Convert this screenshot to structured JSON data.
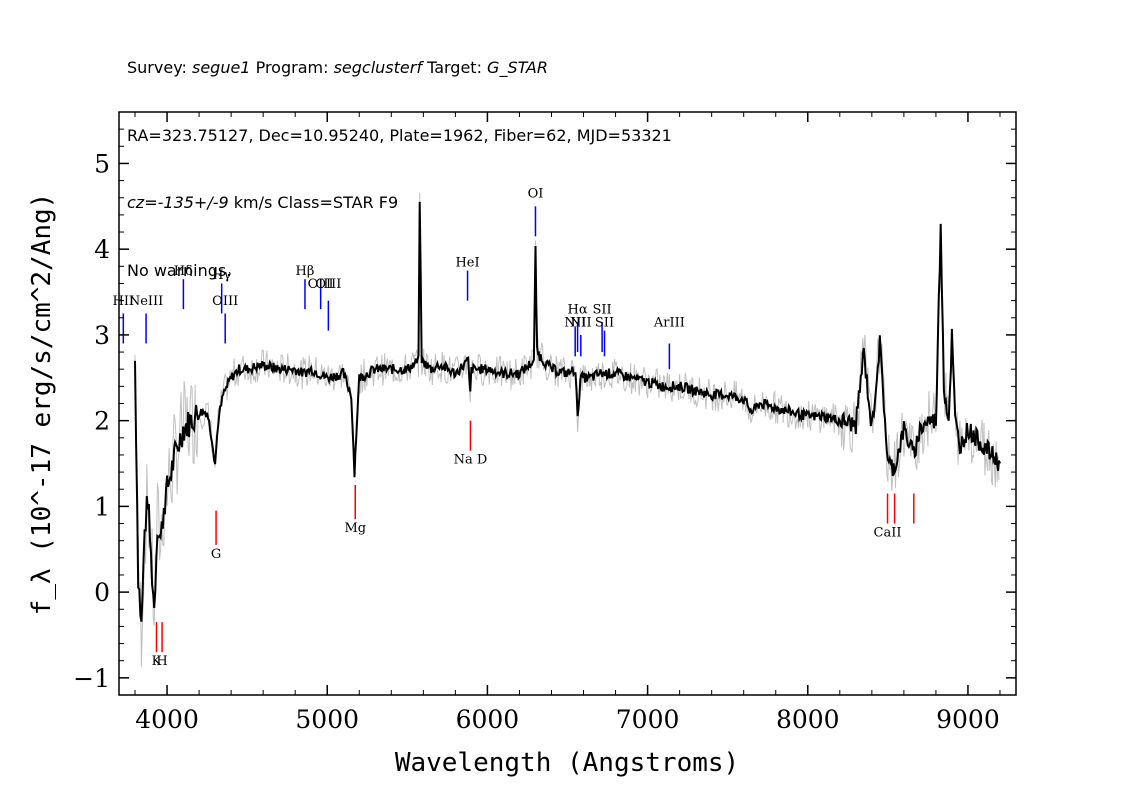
{
  "header": {
    "line1": {
      "survey_label": "Survey:",
      "survey": "segue1",
      "program_label": "Program:",
      "program": "segclusterf",
      "target_label": "Target:",
      "target": "G_STAR"
    },
    "line2": "RA=323.75127, Dec=10.95240, Plate=1962, Fiber=62, MJD=53321",
    "line3": {
      "cz_label": "cz=",
      "cz": "-135+/-9",
      "rest": " km/s Class=STAR F9"
    },
    "line4": "No warnings."
  },
  "chart_data": {
    "type": "line",
    "xlabel": "Wavelength (Angstroms)",
    "ylabel": "f_λ (10^-17 erg/s/cm^2/Ang)",
    "xlim": [
      3700,
      9300
    ],
    "ylim": [
      -1.2,
      5.6
    ],
    "x_ticks": [
      4000,
      5000,
      6000,
      7000,
      8000,
      9000
    ],
    "y_ticks": [
      -1,
      0,
      1,
      2,
      3,
      4,
      5
    ],
    "colors": {
      "spectrum": "#000000",
      "error": "#c0c0c0",
      "emission": "#0000ff",
      "absorption": "#ff0000"
    },
    "spectrum": {
      "x": [
        3800,
        3820,
        3840,
        3860,
        3880,
        3900,
        3920,
        3940,
        3960,
        3980,
        4000,
        4050,
        4100,
        4150,
        4200,
        4250,
        4280,
        4300,
        4320,
        4350,
        4400,
        4450,
        4500,
        4600,
        4700,
        4800,
        4850,
        4900,
        5000,
        5100,
        5150,
        5170,
        5180,
        5200,
        5300,
        5400,
        5500,
        5570,
        5577,
        5590,
        5650,
        5700,
        5800,
        5880,
        5893,
        5900,
        5950,
        6000,
        6100,
        6200,
        6290,
        6300,
        6310,
        6350,
        6400,
        6500,
        6550,
        6563,
        6580,
        6650,
        6700,
        6800,
        6900,
        7000,
        7100,
        7200,
        7300,
        7400,
        7500,
        7600,
        7650,
        7700,
        7800,
        7900,
        8000,
        8100,
        8200,
        8300,
        8350,
        8400,
        8450,
        8500,
        8542,
        8600,
        8662,
        8700,
        8750,
        8800,
        8830,
        8850,
        8880,
        8900,
        8920,
        8950,
        9000,
        9100,
        9200
      ],
      "y": [
        2.7,
        0.2,
        -0.4,
        0.7,
        1.1,
        0.4,
        -0.2,
        0.8,
        0.6,
        1.0,
        1.2,
        1.6,
        1.9,
        2.0,
        2.1,
        2.1,
        1.8,
        1.5,
        2.0,
        2.3,
        2.5,
        2.6,
        2.6,
        2.65,
        2.6,
        2.6,
        2.55,
        2.6,
        2.5,
        2.55,
        2.3,
        1.4,
        1.8,
        2.5,
        2.6,
        2.6,
        2.6,
        2.7,
        4.6,
        2.7,
        2.6,
        2.65,
        2.55,
        2.7,
        2.3,
        2.6,
        2.6,
        2.6,
        2.55,
        2.55,
        2.7,
        4.0,
        2.8,
        2.7,
        2.6,
        2.55,
        2.6,
        2.0,
        2.5,
        2.5,
        2.55,
        2.55,
        2.5,
        2.45,
        2.4,
        2.4,
        2.35,
        2.3,
        2.3,
        2.25,
        2.1,
        2.2,
        2.15,
        2.1,
        2.05,
        2.05,
        2.0,
        1.95,
        2.8,
        1.9,
        2.9,
        1.5,
        1.45,
        1.9,
        1.6,
        1.9,
        2.0,
        2.0,
        4.3,
        2.4,
        2.0,
        3.0,
        2.0,
        1.7,
        1.9,
        1.7,
        1.5
      ]
    },
    "emission_lines": [
      {
        "label": "HII",
        "wavelength": 3727,
        "y_text": 3.35,
        "y_bar": [
          2.9,
          3.25
        ]
      },
      {
        "label": "NeIII",
        "wavelength": 3869,
        "y_text": 3.35,
        "y_bar": [
          2.9,
          3.25
        ]
      },
      {
        "label": "Hδ",
        "wavelength": 4102,
        "y_text": 3.7,
        "y_bar": [
          3.3,
          3.65
        ]
      },
      {
        "label": "Hγ",
        "wavelength": 4341,
        "y_text": 3.65,
        "y_bar": [
          3.25,
          3.6
        ]
      },
      {
        "label": "OIII",
        "wavelength": 4363,
        "y_text": 3.35,
        "y_bar": [
          2.9,
          3.25
        ]
      },
      {
        "label": "Hβ",
        "wavelength": 4861,
        "y_text": 3.7,
        "y_bar": [
          3.3,
          3.65
        ]
      },
      {
        "label": "OIII",
        "wavelength": 4959,
        "y_text": 3.55,
        "y_bar": [
          3.3,
          3.65
        ]
      },
      {
        "label": "OIII",
        "wavelength": 5007,
        "y_text": 3.55,
        "y_bar": [
          3.05,
          3.4
        ]
      },
      {
        "label": "HeI",
        "wavelength": 5876,
        "y_text": 3.8,
        "y_bar": [
          3.4,
          3.75
        ]
      },
      {
        "label": "OI",
        "wavelength": 6300,
        "y_text": 4.6,
        "y_bar": [
          4.15,
          4.5
        ]
      },
      {
        "label": "NII",
        "wavelength": 6548,
        "y_text": 3.1,
        "y_bar": [
          2.75,
          3.1
        ]
      },
      {
        "label": "Hα",
        "wavelength": 6563,
        "y_text": 3.25,
        "y_bar": [
          2.8,
          3.15
        ]
      },
      {
        "label": "NII",
        "wavelength": 6583,
        "y_text": 3.1,
        "y_bar": [
          2.75,
          3.0
        ]
      },
      {
        "label": "SII",
        "wavelength": 6716,
        "y_text": 3.25,
        "y_bar": [
          2.8,
          3.15
        ]
      },
      {
        "label": "SII",
        "wavelength": 6731,
        "y_text": 3.1,
        "y_bar": [
          2.75,
          3.05
        ]
      },
      {
        "label": "ArIII",
        "wavelength": 7136,
        "y_text": 3.1,
        "y_bar": [
          2.6,
          2.9
        ]
      }
    ],
    "absorption_lines": [
      {
        "label": "K",
        "wavelength": 3934,
        "y_text": -0.85,
        "y_bar": [
          -0.7,
          -0.35
        ]
      },
      {
        "label": "H",
        "wavelength": 3969,
        "y_text": -0.85,
        "y_bar": [
          -0.7,
          -0.35
        ]
      },
      {
        "label": "G",
        "wavelength": 4306,
        "y_text": 0.4,
        "y_bar": [
          0.55,
          0.95
        ]
      },
      {
        "label": "Mg",
        "wavelength": 5175,
        "y_text": 0.7,
        "y_bar": [
          0.85,
          1.25
        ]
      },
      {
        "label": "Na D",
        "wavelength": 5894,
        "y_text": 1.5,
        "y_bar": [
          1.65,
          2.0
        ]
      },
      {
        "label": "CaII",
        "wavelength": 8498,
        "y_text": 0.65,
        "y_bar": [
          0.8,
          1.15
        ]
      },
      {
        "label": "CaII",
        "wavelength": 8542,
        "y_text": null,
        "y_bar": [
          0.8,
          1.15
        ]
      },
      {
        "label": "CaII",
        "wavelength": 8662,
        "y_text": null,
        "y_bar": [
          0.8,
          1.15
        ]
      }
    ]
  }
}
